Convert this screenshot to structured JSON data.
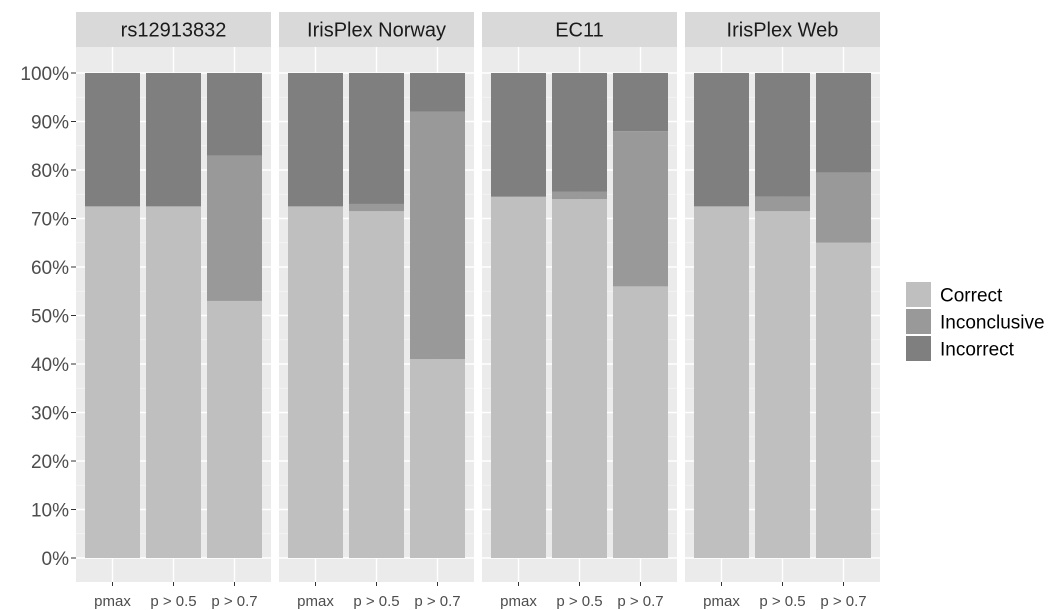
{
  "chart_data": {
    "type": "bar",
    "stacked": true,
    "facets": [
      "rs12913832",
      "IrisPlex Norway",
      "EC11",
      "IrisPlex Web"
    ],
    "categories": [
      "pmax",
      "p > 0.5",
      "p > 0.7"
    ],
    "y_ticks": [
      "0%",
      "10%",
      "20%",
      "30%",
      "40%",
      "50%",
      "60%",
      "70%",
      "80%",
      "90%",
      "100%"
    ],
    "ylim": [
      0,
      100
    ],
    "series": [
      {
        "name": "Correct",
        "color": "#bfbfbf",
        "values": [
          [
            72.5,
            72.5,
            53
          ],
          [
            72.5,
            71.5,
            41
          ],
          [
            74.5,
            74,
            56
          ],
          [
            72.5,
            71.5,
            65
          ]
        ]
      },
      {
        "name": "Inconclusive",
        "color": "#999999",
        "values": [
          [
            0,
            0,
            30
          ],
          [
            0,
            1.5,
            51
          ],
          [
            0,
            1.5,
            32
          ],
          [
            0,
            3,
            14.5
          ]
        ]
      },
      {
        "name": "Incorrect",
        "color": "#7f7f7f",
        "values": [
          [
            27.5,
            27.5,
            17
          ],
          [
            27.5,
            27,
            8
          ],
          [
            25.5,
            24.5,
            12
          ],
          [
            27.5,
            25.5,
            20.5
          ]
        ]
      }
    ],
    "grid": true,
    "legend_position": "right",
    "panel_background": "#ebebeb",
    "strip_background": "#d9d9d9"
  }
}
